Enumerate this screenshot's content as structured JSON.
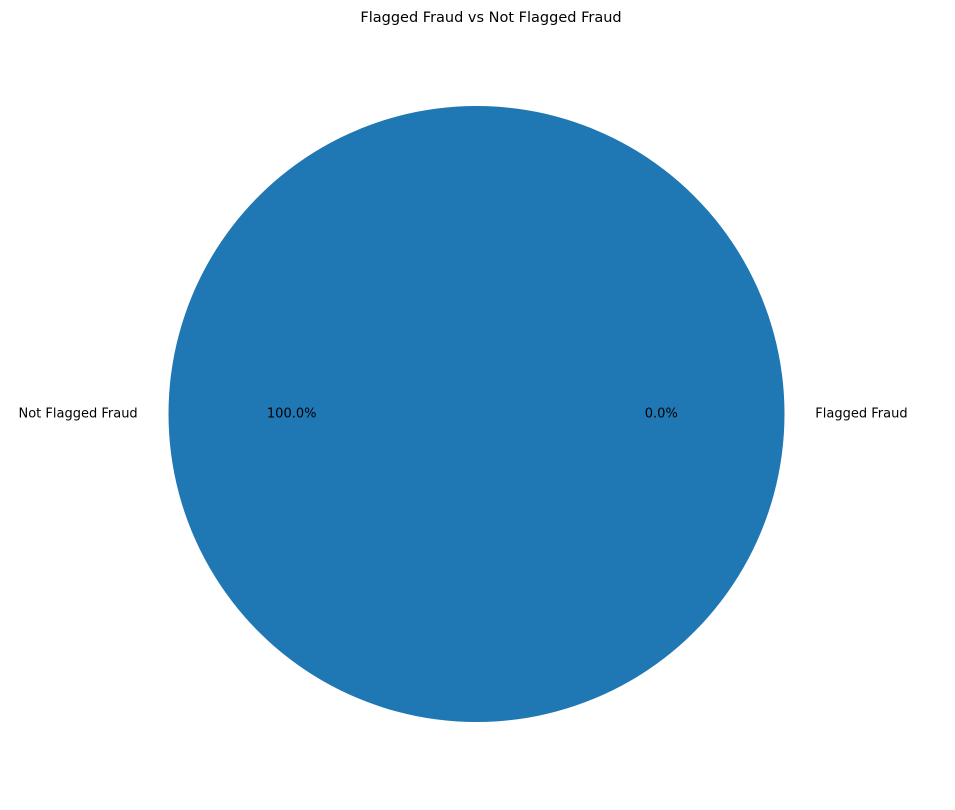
{
  "chart_data": {
    "type": "pie",
    "title": "Flagged Fraud vs Not Flagged Fraud",
    "labels": [
      "Not Flagged Fraud",
      "Flagged Fraud"
    ],
    "values": [
      99.9997,
      0.0003
    ],
    "percent_labels": [
      "100.0%",
      "0.0%"
    ],
    "colors": [
      "#1f77b4",
      "#ff7f0e"
    ],
    "start_angle_deg": 0,
    "direction": "counterclockwise"
  }
}
